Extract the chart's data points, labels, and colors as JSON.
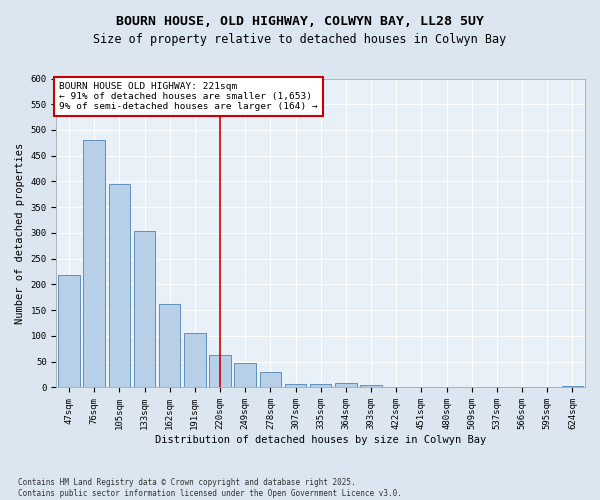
{
  "title": "BOURN HOUSE, OLD HIGHWAY, COLWYN BAY, LL28 5UY",
  "subtitle": "Size of property relative to detached houses in Colwyn Bay",
  "xlabel": "Distribution of detached houses by size in Colwyn Bay",
  "ylabel": "Number of detached properties",
  "categories": [
    "47sqm",
    "76sqm",
    "105sqm",
    "133sqm",
    "162sqm",
    "191sqm",
    "220sqm",
    "249sqm",
    "278sqm",
    "307sqm",
    "335sqm",
    "364sqm",
    "393sqm",
    "422sqm",
    "451sqm",
    "480sqm",
    "509sqm",
    "537sqm",
    "566sqm",
    "595sqm",
    "624sqm"
  ],
  "values": [
    218,
    480,
    395,
    303,
    163,
    105,
    63,
    47,
    30,
    7,
    7,
    9,
    5,
    1,
    1,
    1,
    0,
    1,
    0,
    0,
    3
  ],
  "bar_color": "#b8cfe8",
  "bar_edge_color": "#6090c0",
  "vline_x": 6,
  "vline_color": "#cc0000",
  "annotation_box_text": "BOURN HOUSE OLD HIGHWAY: 221sqm\n← 91% of detached houses are smaller (1,653)\n9% of semi-detached houses are larger (164) →",
  "annotation_box_color": "#cc0000",
  "ylim": [
    0,
    600
  ],
  "yticks": [
    0,
    50,
    100,
    150,
    200,
    250,
    300,
    350,
    400,
    450,
    500,
    550,
    600
  ],
  "footnote": "Contains HM Land Registry data © Crown copyright and database right 2025.\nContains public sector information licensed under the Open Government Licence v3.0.",
  "bg_color": "#dce6f0",
  "plot_bg_color": "#e8f0f8",
  "grid_color": "#ffffff",
  "title_fontsize": 9.5,
  "subtitle_fontsize": 8.5,
  "label_fontsize": 7.5,
  "tick_fontsize": 6.5,
  "footnote_fontsize": 5.5,
  "ann_fontsize": 6.8
}
